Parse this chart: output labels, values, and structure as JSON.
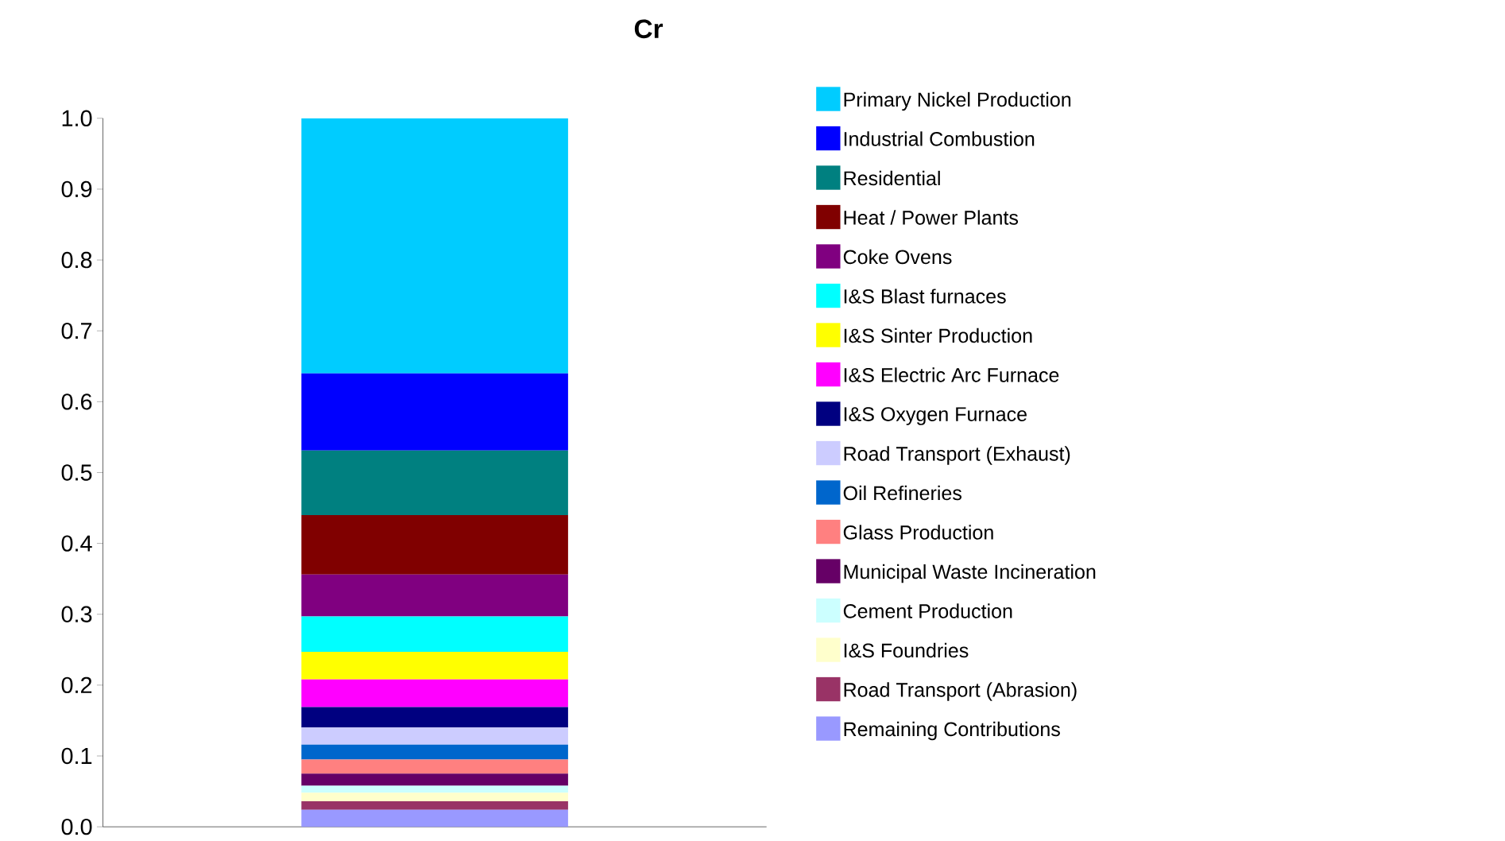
{
  "chart_data": {
    "type": "bar",
    "title": "Cr",
    "categories": [
      null
    ],
    "stacked": true,
    "legend": "right",
    "tick_labels": "y",
    "ylim": [
      0,
      1
    ],
    "yticks": [
      {
        "value": 0,
        "label": "0.0"
      },
      0.1,
      0.2,
      0.3,
      0.4,
      0.5,
      0.6,
      0.7,
      0.8,
      0.9,
      {
        "value": 1,
        "label": "1.0"
      }
    ],
    "series": [
      {
        "name": "Remaining Contributions",
        "color": "#9999ff",
        "values": [
          0.024
        ]
      },
      {
        "name": "Road Transport (Abrasion)",
        "color": "#993366",
        "values": [
          0.012
        ]
      },
      {
        "name": "I&S Foundries",
        "color": "#ffffcc",
        "values": [
          0.012
        ]
      },
      {
        "name": "Cement Production",
        "color": "#ccffff",
        "values": [
          0.01
        ]
      },
      {
        "name": "Municipal Waste Incineration",
        "color": "#660066",
        "values": [
          0.017
        ]
      },
      {
        "name": "Glass Production",
        "color": "#ff8080",
        "values": [
          0.02
        ]
      },
      {
        "name": "Oil Refineries",
        "color": "#0066cc",
        "values": [
          0.021
        ]
      },
      {
        "name": "Road Transport (Exhaust)",
        "color": "#ccccff",
        "values": [
          0.024
        ]
      },
      {
        "name": "I&S Oxygen Furnace",
        "color": "#000080",
        "values": [
          0.029
        ]
      },
      {
        "name": "I&S Electric Arc Furnace",
        "color": "#ff00ff",
        "values": [
          0.039
        ]
      },
      {
        "name": "I&S Sinter Production",
        "color": "#ffff00",
        "values": [
          0.039
        ]
      },
      {
        "name": "I&S Blast furnaces",
        "color": "#00ffff",
        "values": [
          0.05
        ]
      },
      {
        "name": "Coke Ovens",
        "color": "#800080",
        "values": [
          0.059
        ]
      },
      {
        "name": "Heat / Power Plants",
        "color": "#800000",
        "values": [
          0.084
        ]
      },
      {
        "name": "Residential",
        "color": "#008080",
        "values": [
          0.091
        ]
      },
      {
        "name": "Industrial Combustion",
        "color": "#0000ff",
        "values": [
          0.109
        ]
      },
      {
        "name": "Primary Nickel Production",
        "color": "#00ccff",
        "values": [
          0.36
        ]
      }
    ]
  }
}
